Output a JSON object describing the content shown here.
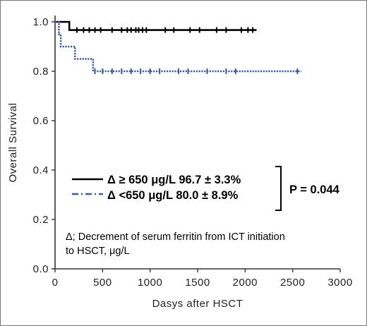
{
  "chart_data": {
    "type": "line",
    "subtype": "kaplan-meier",
    "xlabel": "Dasys after HSCT",
    "ylabel": "Overall Survival",
    "xlim": [
      0,
      3000
    ],
    "ylim": [
      0.0,
      1.0
    ],
    "xticks": [
      "0",
      "500",
      "1000",
      "1500",
      "2000",
      "2500",
      "3000"
    ],
    "yticks": [
      "0.0",
      "0.2",
      "0.4",
      "0.6",
      "0.8",
      "1.0"
    ],
    "grid": false,
    "legend_position": "center-left",
    "series": [
      {
        "name": "Δ ≥ 650 μg/L 96.7 ± 3.3%",
        "color": "#000000",
        "line_style": "solid",
        "steps": [
          [
            0,
            1.0
          ],
          [
            150,
            1.0
          ],
          [
            150,
            0.967
          ],
          [
            2120,
            0.967
          ]
        ],
        "censored": [
          230,
          300,
          360,
          420,
          480,
          600,
          700,
          760,
          800,
          850,
          880,
          920,
          960,
          1160,
          1250,
          1420,
          1520,
          1700,
          1800,
          1960,
          2030,
          2080
        ]
      },
      {
        "name": "Δ <650 μg/L 80.0 ± 8.9%",
        "color": "#3a5aa8",
        "line_style": "dotted",
        "steps": [
          [
            0,
            1.0
          ],
          [
            40,
            1.0
          ],
          [
            40,
            0.95
          ],
          [
            60,
            0.95
          ],
          [
            60,
            0.9
          ],
          [
            210,
            0.9
          ],
          [
            210,
            0.85
          ],
          [
            400,
            0.85
          ],
          [
            400,
            0.8
          ],
          [
            2590,
            0.8
          ]
        ],
        "censored": [
          420,
          500,
          600,
          700,
          800,
          900,
          1000,
          1100,
          1300,
          1400,
          1600,
          1800,
          1900,
          2550
        ]
      }
    ],
    "p_value": "P = 0.044",
    "note": [
      "Δ; Decrement of serum ferritin from ICT initiation",
      "to HSCT, μg/L"
    ]
  }
}
